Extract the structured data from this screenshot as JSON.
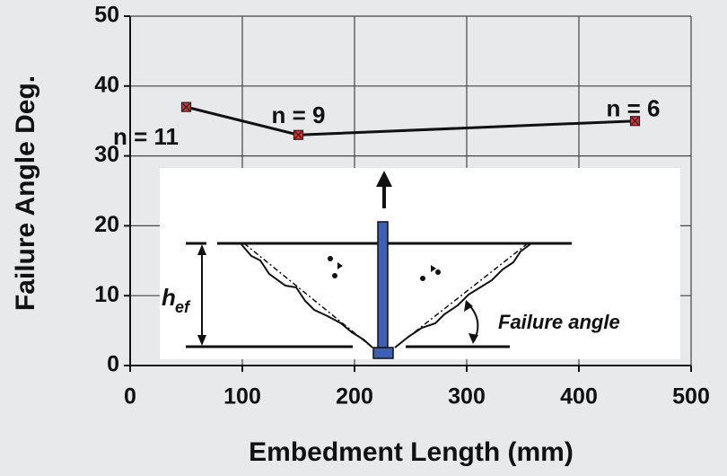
{
  "chart_data": {
    "type": "line",
    "x_label": "Embedment Length (mm)",
    "y_label": "Failure Angle Deg.",
    "x": [
      50,
      150,
      450
    ],
    "series": [
      {
        "color": "#111111",
        "values": [
          37,
          33,
          35
        ]
      }
    ],
    "point_labels": [
      "n = 11",
      "n = 9",
      "n = 6"
    ],
    "xlim": [
      0,
      500
    ],
    "xticks": [
      0,
      100,
      200,
      300,
      400,
      500
    ],
    "ylim": [
      0,
      50
    ],
    "yticks": [
      0,
      10,
      20,
      30,
      40,
      50
    ],
    "grid": true,
    "inset_labels": [
      "h",
      "ef",
      "Failure angle"
    ]
  }
}
